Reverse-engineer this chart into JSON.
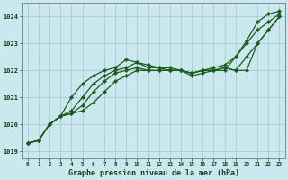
{
  "background_color": "#cce8ef",
  "grid_color": "#aaccd4",
  "line_color": "#1a5c1a",
  "marker_color": "#1a5c1a",
  "title": "Graphe pression niveau de la mer (hPa)",
  "xlim": [
    -0.5,
    23.5
  ],
  "ylim": [
    1018.75,
    1024.5
  ],
  "yticks": [
    1019,
    1020,
    1021,
    1022,
    1023,
    1024
  ],
  "xticks": [
    0,
    1,
    2,
    3,
    4,
    5,
    6,
    7,
    8,
    9,
    10,
    11,
    12,
    13,
    14,
    15,
    16,
    17,
    18,
    19,
    20,
    21,
    22,
    23
  ],
  "series": [
    [
      1019.3,
      1019.4,
      1020.0,
      1020.3,
      1021.0,
      1021.5,
      1021.8,
      1022.0,
      1022.1,
      1022.4,
      1022.3,
      1022.2,
      1022.1,
      1022.1,
      1022.0,
      1021.9,
      1022.0,
      1022.0,
      1022.0,
      1022.5,
      1023.1,
      1023.8,
      1024.1,
      1024.2
    ],
    [
      1019.3,
      1019.4,
      1020.0,
      1020.3,
      1020.5,
      1021.0,
      1021.5,
      1021.8,
      1022.0,
      1022.1,
      1022.3,
      1022.1,
      1022.1,
      1022.0,
      1022.0,
      1021.9,
      1022.0,
      1022.1,
      1022.2,
      1022.5,
      1023.0,
      1023.5,
      1023.8,
      1024.1
    ],
    [
      1019.3,
      1019.4,
      1020.0,
      1020.3,
      1020.4,
      1020.7,
      1021.2,
      1021.6,
      1021.9,
      1022.0,
      1022.1,
      1022.0,
      1022.0,
      1022.0,
      1022.0,
      1021.9,
      1022.0,
      1022.0,
      1022.1,
      1022.0,
      1022.5,
      1023.0,
      1023.5,
      1024.0
    ],
    [
      1019.3,
      1019.4,
      1020.0,
      1020.3,
      1020.4,
      1020.5,
      1020.8,
      1021.2,
      1021.6,
      1021.8,
      1022.0,
      1022.0,
      1022.0,
      1022.0,
      1022.0,
      1021.8,
      1021.9,
      1022.0,
      1022.1,
      1022.0,
      1022.0,
      1023.0,
      1023.5,
      1024.0
    ]
  ]
}
